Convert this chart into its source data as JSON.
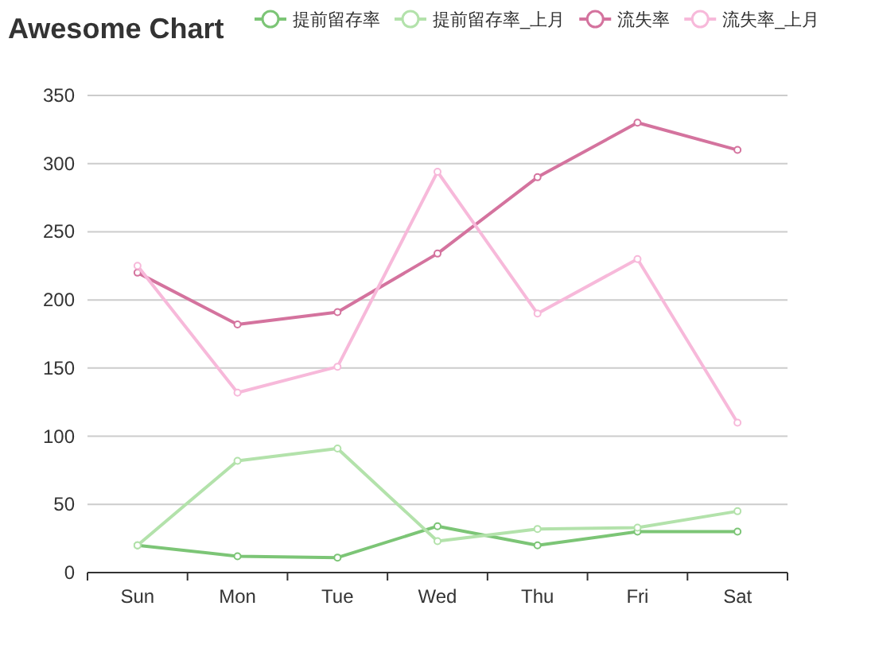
{
  "chart_data": {
    "type": "line",
    "title": "Awesome Chart",
    "categories": [
      "Sun",
      "Mon",
      "Tue",
      "Wed",
      "Thu",
      "Fri",
      "Sat"
    ],
    "series": [
      {
        "name": "提前留存率",
        "color": "#7cc576",
        "values": [
          20,
          12,
          11,
          34,
          20,
          30,
          30
        ]
      },
      {
        "name": "提前留存率_上月",
        "color": "#b3e2ab",
        "values": [
          20,
          82,
          91,
          23,
          32,
          33,
          45
        ]
      },
      {
        "name": "流失率",
        "color": "#d4739e",
        "values": [
          220,
          182,
          191,
          234,
          290,
          330,
          310
        ]
      },
      {
        "name": "流失率_上月",
        "color": "#f7b9da",
        "values": [
          225,
          132,
          151,
          294,
          190,
          230,
          110
        ]
      }
    ],
    "ylim": [
      0,
      350
    ],
    "yticks": [
      0,
      50,
      100,
      150,
      200,
      250,
      300,
      350
    ],
    "grid": "y",
    "legend": "top",
    "marker": "circle"
  }
}
